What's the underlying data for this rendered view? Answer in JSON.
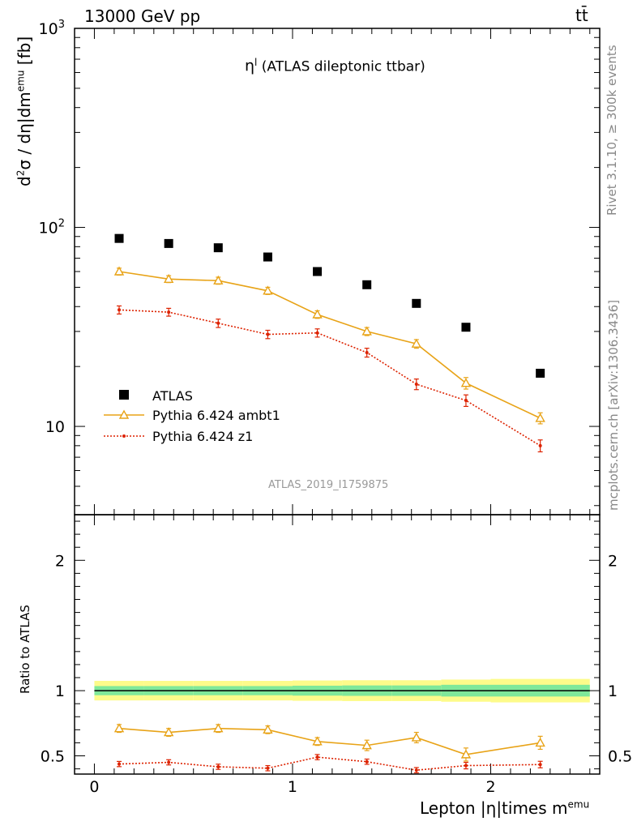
{
  "header": {
    "energy": "13000 GeV pp",
    "process": "tt̄"
  },
  "annotations": {
    "main_title_sym": "η",
    "main_title_sup": "l",
    "main_title_rest": " (ATLAS dileptonic ttbar)",
    "analysis_id": "ATLAS_2019_I1759875",
    "side_rivet": "Rivet 3.1.10, ≥ 300k events",
    "side_mcplots": "mcplots.cern.ch [arXiv:1306.3436]"
  },
  "axes": {
    "ylabel_main_pre": "d",
    "ylabel_main_sup": "2",
    "ylabel_main_mid": "σ / dη|dm",
    "ylabel_main_sup2": "emu",
    "ylabel_main_post": " [fb]",
    "ylabel_ratio": "Ratio to ATLAS",
    "xlabel_pre": "Lepton |η|times m",
    "xlabel_sup": "emu",
    "main_ytick_labels": [
      {
        "value": 10,
        "base": "10",
        "exp": ""
      },
      {
        "value": 100,
        "base": "10",
        "exp": "2"
      },
      {
        "value": 1000,
        "base": "10",
        "exp": "3"
      }
    ],
    "ratio_ytick_labels": [
      "0.5",
      "1",
      "2"
    ],
    "xtick_labels": [
      "0",
      "1",
      "2"
    ]
  },
  "chart_data": {
    "type": "scatter",
    "main": {
      "yscale": "log",
      "xlim": [
        -0.1,
        2.55
      ],
      "ylim": [
        3.6,
        1000
      ]
    },
    "ratio": {
      "ylim": [
        0.36,
        2.35
      ]
    },
    "x": [
      0.125,
      0.375,
      0.625,
      0.875,
      1.125,
      1.375,
      1.625,
      1.875,
      2.25
    ],
    "x_edges": [
      0.0,
      0.25,
      0.5,
      0.75,
      1.0,
      1.25,
      1.5,
      1.75,
      2.0,
      2.5
    ],
    "series": [
      {
        "name": "ATLAS",
        "color": "#000000",
        "marker": "square",
        "values": [
          88,
          83,
          79,
          71,
          60,
          51.5,
          41.5,
          31.5,
          18.5
        ],
        "ratio_band_inner": [
          0.035,
          0.035,
          0.035,
          0.035,
          0.038,
          0.04,
          0.04,
          0.045,
          0.045
        ],
        "ratio_band_outer": [
          0.075,
          0.075,
          0.075,
          0.075,
          0.078,
          0.08,
          0.08,
          0.085,
          0.09
        ]
      },
      {
        "name": "Pythia 6.424 ambt1",
        "color": "#e8a317",
        "marker": "triangle",
        "line": "solid",
        "values": [
          60,
          55,
          54,
          48,
          36.5,
          30,
          26,
          16.5,
          11
        ],
        "errors": [
          2.4,
          2.2,
          2.2,
          2.0,
          1.6,
          1.4,
          1.3,
          1.1,
          0.7
        ],
        "ratio": [
          0.71,
          0.68,
          0.71,
          0.7,
          0.61,
          0.58,
          0.64,
          0.51,
          0.6
        ],
        "ratio_err": [
          0.03,
          0.03,
          0.03,
          0.03,
          0.03,
          0.04,
          0.04,
          0.05,
          0.05
        ]
      },
      {
        "name": "Pythia 6.424 z1",
        "color": "#dd2200",
        "marker": "dot",
        "line": "dotted",
        "values": [
          38.5,
          37.5,
          33,
          29,
          29.5,
          23.5,
          16.3,
          13.5,
          8
        ],
        "errors": [
          1.8,
          1.7,
          1.6,
          1.4,
          1.4,
          1.2,
          1.0,
          0.9,
          0.55
        ],
        "ratio": [
          0.437,
          0.45,
          0.416,
          0.405,
          0.49,
          0.455,
          0.39,
          0.425,
          0.433
        ],
        "ratio_err": [
          0.02,
          0.02,
          0.02,
          0.02,
          0.02,
          0.02,
          0.02,
          0.025,
          0.025
        ]
      }
    ]
  }
}
